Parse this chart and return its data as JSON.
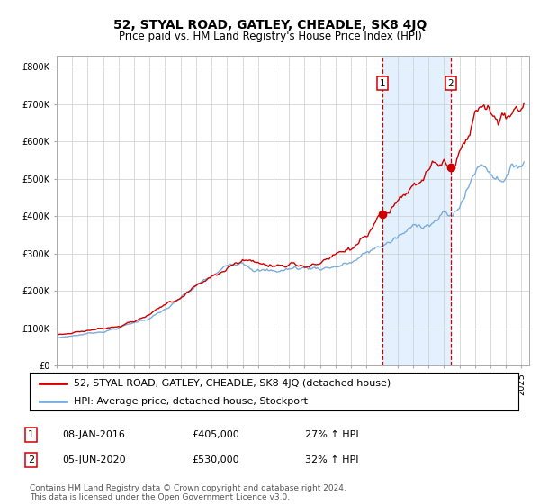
{
  "title": "52, STYAL ROAD, GATLEY, CHEADLE, SK8 4JQ",
  "subtitle": "Price paid vs. HM Land Registry's House Price Index (HPI)",
  "legend_line1": "52, STYAL ROAD, GATLEY, CHEADLE, SK8 4JQ (detached house)",
  "legend_line2": "HPI: Average price, detached house, Stockport",
  "annotation1_date": "08-JAN-2016",
  "annotation1_price": "£405,000",
  "annotation1_hpi": "27% ↑ HPI",
  "annotation2_date": "05-JUN-2020",
  "annotation2_price": "£530,000",
  "annotation2_hpi": "32% ↑ HPI",
  "footer": "Contains HM Land Registry data © Crown copyright and database right 2024.\nThis data is licensed under the Open Government Licence v3.0.",
  "sale1_year": 2016.03,
  "sale1_price": 405000,
  "sale2_year": 2020.43,
  "sale2_price": 530000,
  "red_color": "#cc0000",
  "blue_color": "#7aaddd",
  "shade_color": "#ddeeff",
  "grid_color": "#cccccc",
  "bg_color": "#ffffff",
  "title_fontsize": 10,
  "subtitle_fontsize": 8.5,
  "tick_fontsize": 7,
  "legend_fontsize": 8,
  "ann_fontsize": 8,
  "footer_fontsize": 6.5,
  "ylim_max": 830000,
  "xlim_min": 1995,
  "xlim_max": 2025.5
}
